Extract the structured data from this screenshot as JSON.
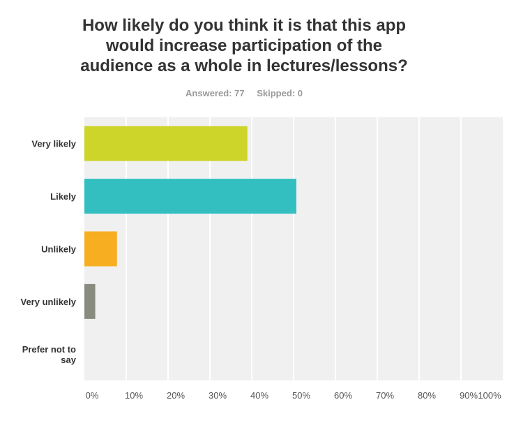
{
  "title_lines": [
    "How likely do you think it is that this app",
    "would increase participation of the",
    "audience as a whole in lectures/lessons?"
  ],
  "stats": {
    "answered": "Answered: 77",
    "skipped": "Skipped: 0"
  },
  "chart_data": {
    "type": "bar",
    "orientation": "horizontal",
    "categories": [
      [
        "Very likely"
      ],
      [
        "Likely"
      ],
      [
        "Unlikely"
      ],
      [
        "Very unlikely"
      ],
      [
        "Prefer not to",
        "say"
      ]
    ],
    "values": [
      38.96,
      50.65,
      7.79,
      2.6,
      0
    ],
    "colors": [
      "#cdd52a",
      "#33bfc0",
      "#f7ae21",
      "#888c80",
      "#cccccc"
    ],
    "xlim": [
      0,
      100
    ],
    "ticks": [
      "0%",
      "10%",
      "20%",
      "30%",
      "40%",
      "50%",
      "60%",
      "70%",
      "80%",
      "90%",
      "100%"
    ],
    "grid": true
  }
}
